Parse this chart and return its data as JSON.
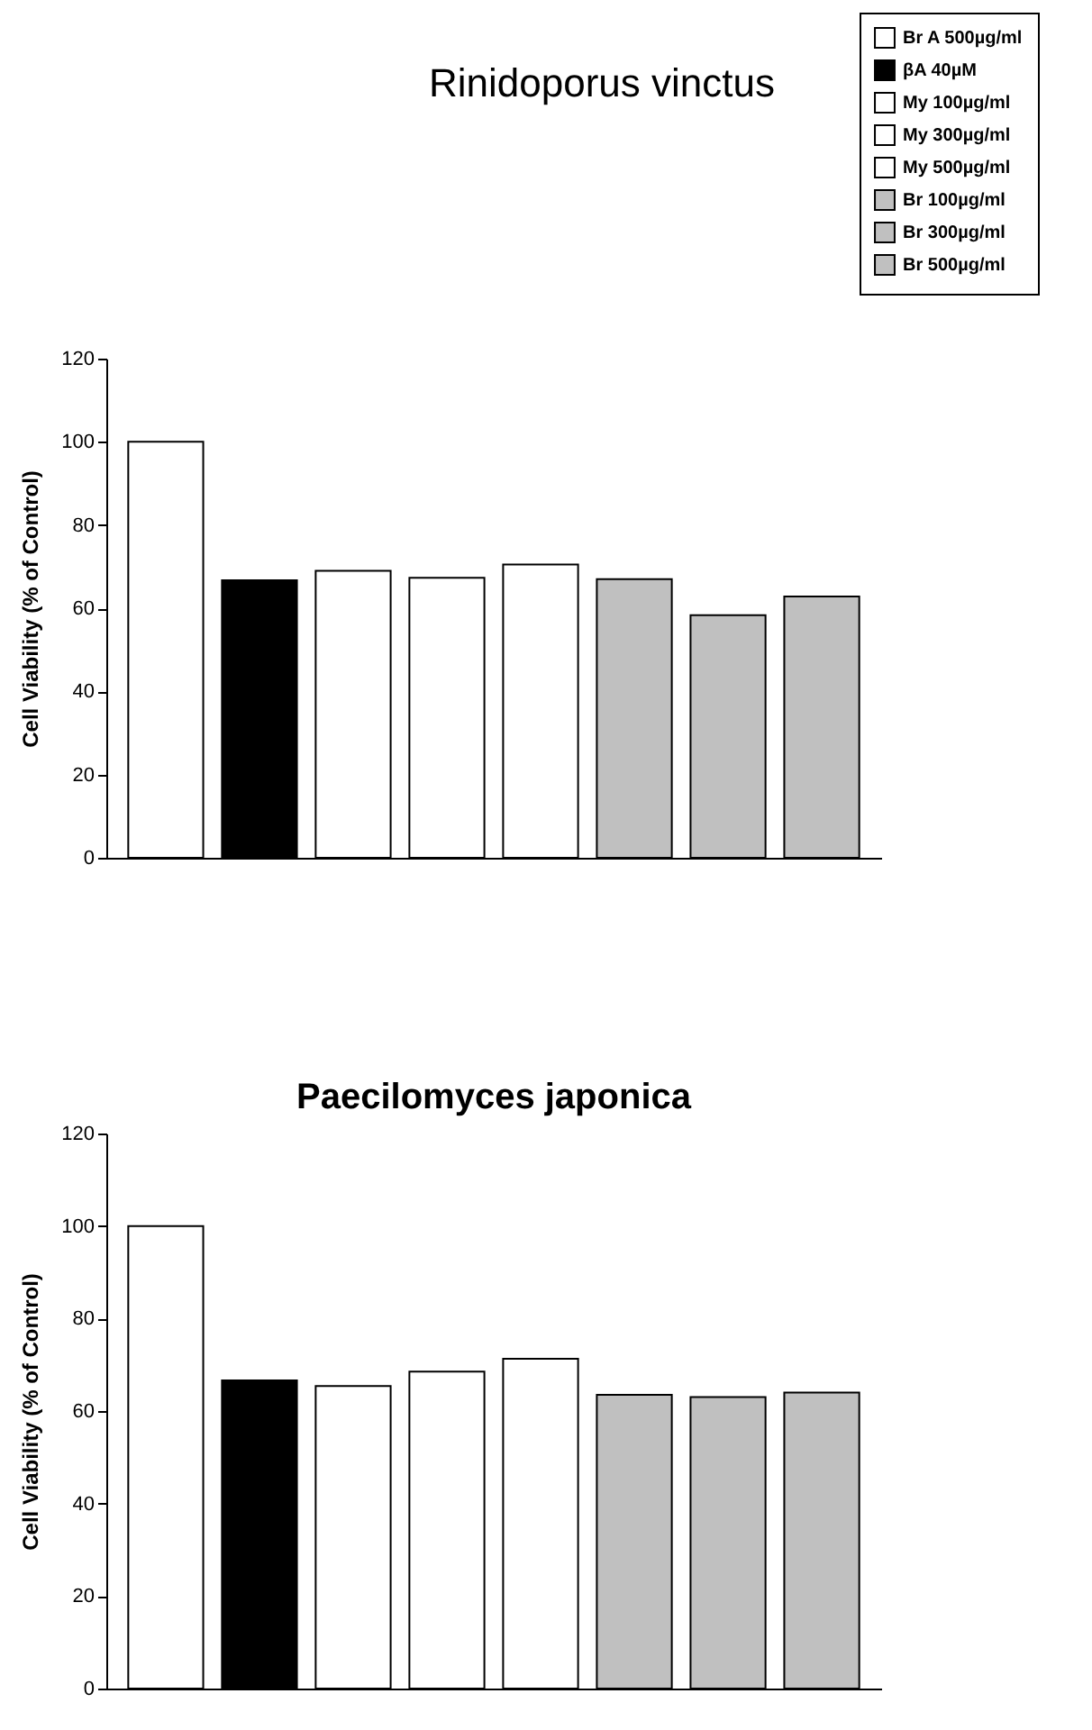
{
  "chart_data": [
    {
      "type": "bar",
      "title": "Rinidoporus vinctus",
      "ylabel": "Cell Viability (% of Control)",
      "categories": [
        null
      ],
      "ylim": [
        0,
        120
      ],
      "yticks": [
        0,
        20,
        40,
        60,
        80,
        100,
        120
      ],
      "tick_labels": "y",
      "legend": "top right",
      "series": [
        {
          "name": "Br A 500µg/ml",
          "color": "#ffffff",
          "values": [
            100
          ]
        },
        {
          "name": "βA 40µM",
          "color": "#000000",
          "values": [
            66.7
          ]
        },
        {
          "name": "My 100µg/ml",
          "color": "#ffffff",
          "values": [
            69
          ]
        },
        {
          "name": "My 300µg/ml",
          "color": "#ffffff",
          "values": [
            67.3
          ]
        },
        {
          "name": "My 500µg/ml",
          "color": "#ffffff",
          "values": [
            70.5
          ]
        },
        {
          "name": "Br 100µg/ml",
          "color": "#c0c0c0",
          "values": [
            67
          ]
        },
        {
          "name": "Br 300µg/ml",
          "color": "#c0c0c0",
          "values": [
            58.3
          ]
        },
        {
          "name": "Br 500µg/ml",
          "color": "#c0c0c0",
          "values": [
            62.8
          ]
        }
      ]
    },
    {
      "type": "bar",
      "title": "Paecilomyces japonica",
      "ylabel": "Cell Viability (% of Control)",
      "categories": [
        null
      ],
      "ylim": [
        0,
        120
      ],
      "yticks": [
        0,
        20,
        40,
        60,
        80,
        100,
        120
      ],
      "tick_labels": "y",
      "series": [
        {
          "color": "#ffffff",
          "values": [
            100
          ]
        },
        {
          "color": "#000000",
          "values": [
            66.6
          ]
        },
        {
          "color": "#ffffff",
          "values": [
            65.4
          ]
        },
        {
          "color": "#ffffff",
          "values": [
            68.5
          ]
        },
        {
          "color": "#ffffff",
          "values": [
            71.3
          ]
        },
        {
          "color": "#c0c0c0",
          "values": [
            63.5
          ]
        },
        {
          "color": "#c0c0c0",
          "values": [
            63
          ]
        },
        {
          "color": "#c0c0c0",
          "values": [
            64
          ]
        }
      ]
    }
  ]
}
